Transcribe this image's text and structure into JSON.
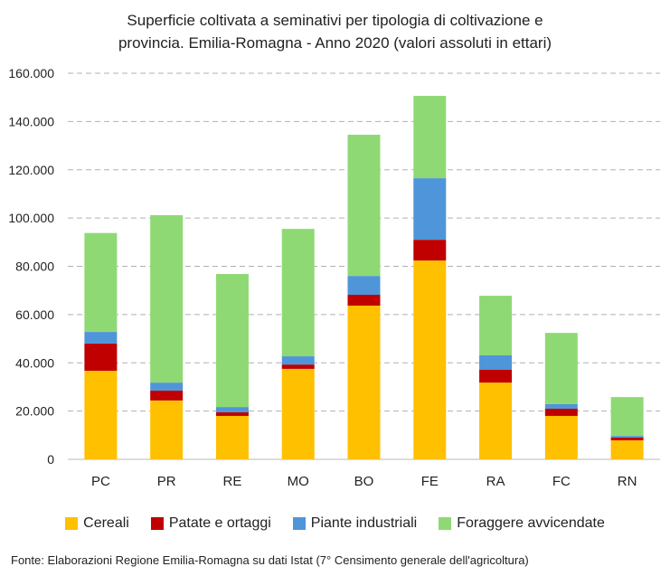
{
  "chart_data": {
    "type": "bar",
    "stacked": true,
    "title": "Superficie coltivata a seminativi per tipologia di coltivazione e provincia. Emilia-Romagna - Anno 2020 (valori assoluti in ettari)",
    "title_lines": [
      "Superficie coltivata a seminativi per tipologia di coltivazione e",
      "provincia. Emilia-Romagna - Anno 2020 (valori assoluti in ettari)"
    ],
    "categories": [
      "PC",
      "PR",
      "RE",
      "MO",
      "BO",
      "FE",
      "RA",
      "FC",
      "RN"
    ],
    "series": [
      {
        "name": "Cereali",
        "color": "#FFC000",
        "values": [
          36700,
          24400,
          18000,
          37500,
          63700,
          82400,
          31800,
          18000,
          7900
        ]
      },
      {
        "name": "Patate e ortaggi",
        "color": "#C00000",
        "values": [
          11300,
          4100,
          1500,
          1800,
          4500,
          8600,
          5300,
          3000,
          1100
        ]
      },
      {
        "name": "Piante industriali",
        "color": "#4F95D9",
        "values": [
          4800,
          3300,
          2200,
          3400,
          7800,
          25500,
          6000,
          1900,
          700
        ]
      },
      {
        "name": "Foraggere avvicendate",
        "color": "#8FD974",
        "values": [
          41000,
          69400,
          55100,
          52800,
          58500,
          34100,
          24700,
          29500,
          16100
        ]
      }
    ],
    "ylim": [
      0,
      160000
    ],
    "yticks": [
      "0",
      "20.000",
      "40.000",
      "60.000",
      "80.000",
      "100.000",
      "120.000",
      "140.000",
      "160.000"
    ],
    "grid": true,
    "legend": "bottom",
    "source": "Fonte: Elaborazioni Regione Emilia-Romagna su dati Istat (7° Censimento generale dell'agricoltura)"
  }
}
